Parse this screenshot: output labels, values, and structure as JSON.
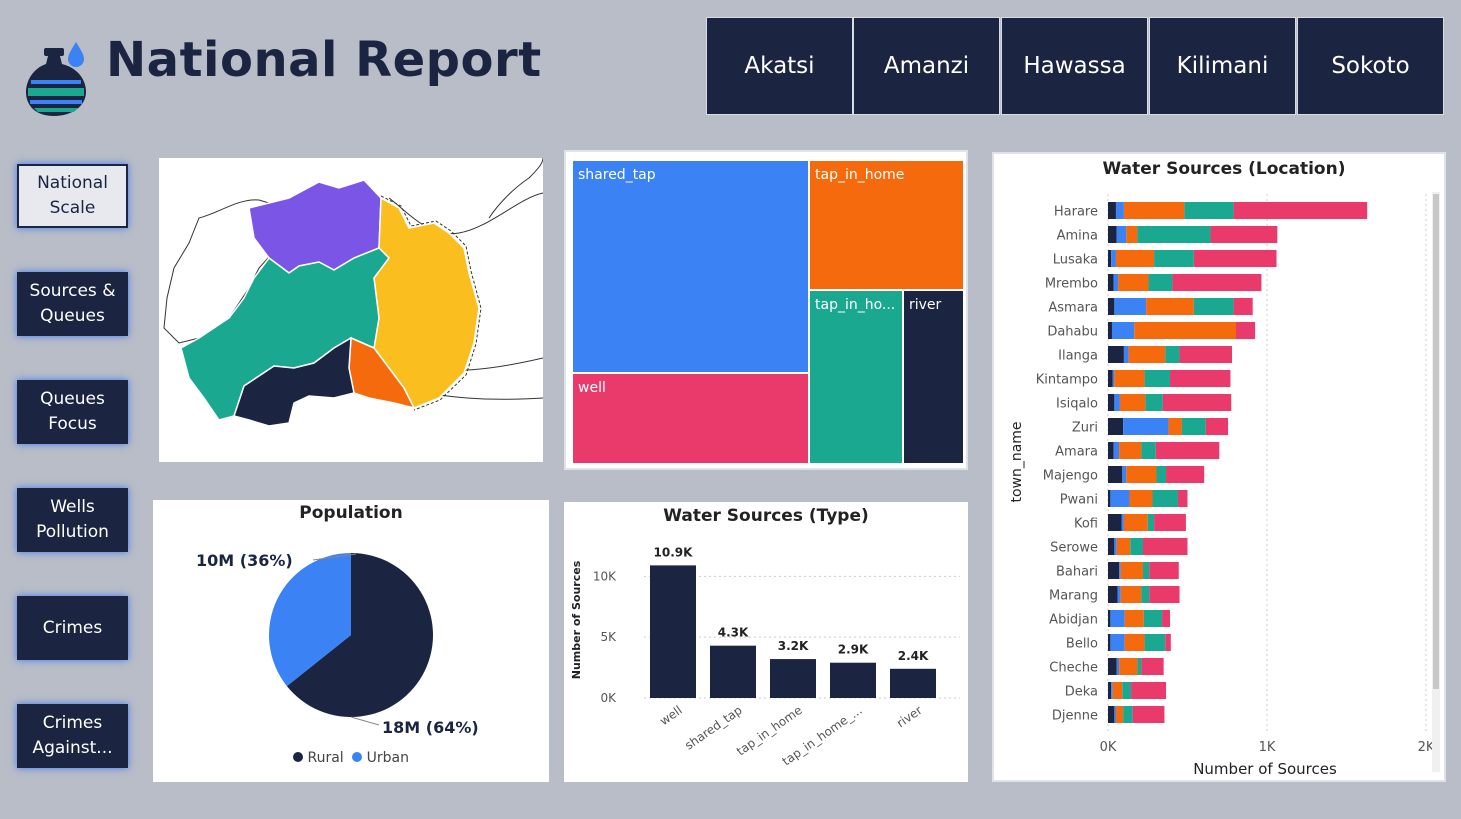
{
  "header": {
    "title": "National Report",
    "logo_icon": "water-pot-icon"
  },
  "towns": [
    "Akatsi",
    "Amanzi",
    "Hawassa",
    "Kilimani",
    "Sokoto"
  ],
  "nav": [
    "National Scale",
    "Sources & Queues",
    "Queues Focus",
    "Wells Pollution",
    "Crimes",
    "Crimes Against..."
  ],
  "colors": {
    "navy": "#1b2542",
    "blue": "#3b82f4",
    "orange": "#f46a0c",
    "teal": "#1aa891",
    "pink": "#ea3a6c",
    "purple": "#7b55e6",
    "yellow": "#fbbe1f"
  },
  "treemap": {
    "tiles": [
      {
        "label": "shared_tap",
        "color": "#3b82f4"
      },
      {
        "label": "tap_in_home",
        "color": "#f46a0c"
      },
      {
        "label": "tap_in_ho...",
        "color": "#1aa891"
      },
      {
        "label": "river",
        "color": "#1b2542"
      },
      {
        "label": "well",
        "color": "#ea3a6c"
      }
    ]
  },
  "population": {
    "title": "Population",
    "label_urban": "10M (36%)",
    "label_rural": "18M (64%)",
    "legend": [
      {
        "name": "Rural",
        "color": "#1b2542"
      },
      {
        "name": "Urban",
        "color": "#3b82f4"
      }
    ],
    "chart_data": {
      "type": "pie",
      "slices": [
        {
          "name": "Rural",
          "value": 18,
          "percent": 64
        },
        {
          "name": "Urban",
          "value": 10,
          "percent": 36
        }
      ]
    }
  },
  "type_chart": {
    "title": "Water Sources (Type)",
    "ylabel": "Number of Sources",
    "yticks": [
      "10K",
      "5K",
      "0K"
    ],
    "data_labels": [
      "10.9K",
      "4.3K",
      "3.2K",
      "2.9K",
      "2.4K"
    ],
    "tick_labels": [
      "well",
      "shared_tap",
      "tap_in_home",
      "tap_in_home_...",
      "river"
    ],
    "chart_data": {
      "type": "bar",
      "categories": [
        "well",
        "shared_tap",
        "tap_in_home",
        "tap_in_home_broken",
        "river"
      ],
      "values": [
        10900,
        4300,
        3200,
        2900,
        2400
      ],
      "ylim": [
        0,
        12000
      ]
    }
  },
  "location_chart": {
    "title": "Water Sources (Location)",
    "xlabel": "Number of Sources",
    "ylabel": "town_name",
    "xticks": [
      "0K",
      "1K",
      "2K"
    ],
    "chart_data": {
      "type": "bar",
      "orientation": "horizontal",
      "stacked": true,
      "xlim": [
        0,
        2000
      ],
      "categories": [
        "Harare",
        "Amina",
        "Lusaka",
        "Mrembo",
        "Asmara",
        "Dahabu",
        "Ilanga",
        "Kintampo",
        "Isiqalo",
        "Zuri",
        "Amara",
        "Majengo",
        "Pwani",
        "Kofi",
        "Serowe",
        "Bahari",
        "Marang",
        "Abidjan",
        "Bello",
        "Cheche",
        "Deka",
        "Djenne"
      ],
      "series": [
        {
          "color": "#1b2542",
          "values": [
            50,
            55,
            20,
            35,
            40,
            25,
            100,
            30,
            40,
            95,
            35,
            90,
            15,
            85,
            40,
            70,
            60,
            15,
            15,
            55,
            20,
            40
          ]
        },
        {
          "color": "#3b82f4",
          "values": [
            50,
            60,
            30,
            30,
            200,
            140,
            30,
            10,
            35,
            285,
            35,
            25,
            120,
            15,
            15,
            10,
            20,
            90,
            90,
            15,
            10,
            10
          ]
        },
        {
          "color": "#f46a0c",
          "values": [
            380,
            70,
            240,
            190,
            300,
            640,
            230,
            190,
            160,
            85,
            140,
            190,
            145,
            150,
            85,
            140,
            130,
            120,
            125,
            115,
            60,
            45
          ]
        },
        {
          "color": "#1aa891",
          "values": [
            310,
            460,
            250,
            150,
            250,
            0,
            90,
            160,
            110,
            150,
            90,
            60,
            160,
            40,
            80,
            40,
            50,
            115,
            130,
            25,
            55,
            60
          ]
        },
        {
          "color": "#ea3a6c",
          "values": [
            840,
            420,
            520,
            560,
            120,
            120,
            330,
            380,
            430,
            140,
            400,
            240,
            60,
            200,
            280,
            185,
            190,
            50,
            35,
            140,
            220,
            200
          ]
        }
      ]
    }
  }
}
